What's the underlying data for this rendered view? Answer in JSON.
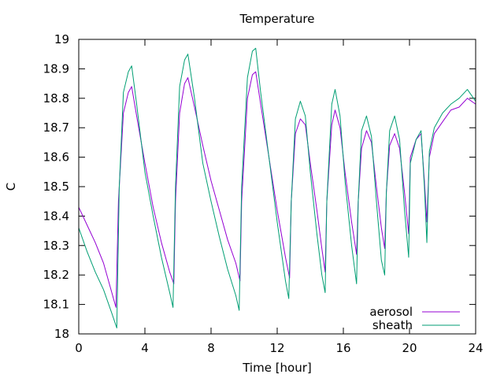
{
  "chart_data": {
    "type": "line",
    "title": "Temperature",
    "xlabel": "Time [hour]",
    "ylabel": "C",
    "xlim": [
      0,
      24
    ],
    "ylim": [
      18,
      19
    ],
    "x_ticks": [
      0,
      4,
      8,
      12,
      16,
      20,
      24
    ],
    "y_ticks": [
      18,
      18.1,
      18.2,
      18.3,
      18.4,
      18.5,
      18.6,
      18.7,
      18.8,
      18.9,
      19
    ],
    "y_tick_labels": [
      "18",
      "18.1",
      "18.2",
      "18.3",
      "18.4",
      "18.5",
      "18.6",
      "18.7",
      "18.8",
      "18.9",
      "19"
    ],
    "grid": false,
    "legend_position": "bottom-right",
    "series": [
      {
        "name": "aerosol",
        "color": "#9400d3",
        "points": [
          [
            0,
            18.43
          ],
          [
            0.5,
            18.37
          ],
          [
            1.0,
            18.31
          ],
          [
            1.5,
            18.24
          ],
          [
            2.0,
            18.14
          ],
          [
            2.25,
            18.09
          ],
          [
            2.4,
            18.45
          ],
          [
            2.7,
            18.75
          ],
          [
            3.0,
            18.82
          ],
          [
            3.2,
            18.84
          ],
          [
            3.5,
            18.74
          ],
          [
            4.0,
            18.58
          ],
          [
            4.5,
            18.43
          ],
          [
            5.0,
            18.31
          ],
          [
            5.5,
            18.21
          ],
          [
            5.75,
            18.17
          ],
          [
            5.85,
            18.45
          ],
          [
            6.1,
            18.75
          ],
          [
            6.4,
            18.85
          ],
          [
            6.6,
            18.87
          ],
          [
            7.0,
            18.77
          ],
          [
            7.5,
            18.64
          ],
          [
            8.0,
            18.52
          ],
          [
            8.5,
            18.42
          ],
          [
            9.0,
            18.32
          ],
          [
            9.5,
            18.24
          ],
          [
            9.75,
            18.18
          ],
          [
            9.85,
            18.45
          ],
          [
            10.2,
            18.8
          ],
          [
            10.5,
            18.88
          ],
          [
            10.7,
            18.89
          ],
          [
            11.0,
            18.78
          ],
          [
            11.5,
            18.6
          ],
          [
            12.0,
            18.42
          ],
          [
            12.5,
            18.26
          ],
          [
            12.75,
            18.19
          ],
          [
            12.85,
            18.45
          ],
          [
            13.1,
            18.68
          ],
          [
            13.4,
            18.73
          ],
          [
            13.7,
            18.71
          ],
          [
            14.0,
            18.58
          ],
          [
            14.4,
            18.42
          ],
          [
            14.7,
            18.29
          ],
          [
            14.9,
            18.21
          ],
          [
            15.0,
            18.45
          ],
          [
            15.3,
            18.71
          ],
          [
            15.5,
            18.76
          ],
          [
            15.8,
            18.7
          ],
          [
            16.1,
            18.55
          ],
          [
            16.5,
            18.38
          ],
          [
            16.8,
            18.27
          ],
          [
            16.9,
            18.45
          ],
          [
            17.1,
            18.63
          ],
          [
            17.4,
            18.69
          ],
          [
            17.7,
            18.65
          ],
          [
            18.0,
            18.5
          ],
          [
            18.3,
            18.36
          ],
          [
            18.5,
            18.29
          ],
          [
            18.6,
            18.48
          ],
          [
            18.8,
            18.64
          ],
          [
            19.1,
            18.68
          ],
          [
            19.4,
            18.63
          ],
          [
            19.7,
            18.48
          ],
          [
            19.95,
            18.34
          ],
          [
            20.05,
            18.6
          ],
          [
            20.4,
            18.66
          ],
          [
            20.7,
            18.68
          ],
          [
            20.9,
            18.52
          ],
          [
            21.05,
            18.38
          ],
          [
            21.2,
            18.6
          ],
          [
            21.5,
            18.68
          ],
          [
            22.0,
            18.72
          ],
          [
            22.5,
            18.76
          ],
          [
            23.0,
            18.77
          ],
          [
            23.5,
            18.8
          ],
          [
            24.0,
            18.78
          ]
        ]
      },
      {
        "name": "sheath",
        "color": "#009e73",
        "points": [
          [
            0,
            18.36
          ],
          [
            0.5,
            18.28
          ],
          [
            1.0,
            18.21
          ],
          [
            1.5,
            18.15
          ],
          [
            2.0,
            18.07
          ],
          [
            2.3,
            18.02
          ],
          [
            2.45,
            18.5
          ],
          [
            2.7,
            18.82
          ],
          [
            3.0,
            18.89
          ],
          [
            3.2,
            18.91
          ],
          [
            3.5,
            18.78
          ],
          [
            4.0,
            18.55
          ],
          [
            4.5,
            18.4
          ],
          [
            5.0,
            18.26
          ],
          [
            5.5,
            18.14
          ],
          [
            5.7,
            18.09
          ],
          [
            5.85,
            18.5
          ],
          [
            6.1,
            18.84
          ],
          [
            6.4,
            18.93
          ],
          [
            6.6,
            18.95
          ],
          [
            7.0,
            18.8
          ],
          [
            7.5,
            18.58
          ],
          [
            8.0,
            18.45
          ],
          [
            8.5,
            18.33
          ],
          [
            9.0,
            18.22
          ],
          [
            9.5,
            18.13
          ],
          [
            9.7,
            18.08
          ],
          [
            9.85,
            18.5
          ],
          [
            10.2,
            18.87
          ],
          [
            10.5,
            18.96
          ],
          [
            10.7,
            18.97
          ],
          [
            11.0,
            18.82
          ],
          [
            11.5,
            18.6
          ],
          [
            12.0,
            18.38
          ],
          [
            12.5,
            18.18
          ],
          [
            12.7,
            18.12
          ],
          [
            12.85,
            18.45
          ],
          [
            13.1,
            18.73
          ],
          [
            13.4,
            18.79
          ],
          [
            13.7,
            18.74
          ],
          [
            14.0,
            18.55
          ],
          [
            14.4,
            18.34
          ],
          [
            14.7,
            18.2
          ],
          [
            14.9,
            18.14
          ],
          [
            15.0,
            18.45
          ],
          [
            15.3,
            18.78
          ],
          [
            15.5,
            18.83
          ],
          [
            15.8,
            18.74
          ],
          [
            16.1,
            18.52
          ],
          [
            16.5,
            18.3
          ],
          [
            16.8,
            18.17
          ],
          [
            16.9,
            18.45
          ],
          [
            17.1,
            18.69
          ],
          [
            17.4,
            18.74
          ],
          [
            17.7,
            18.67
          ],
          [
            18.0,
            18.45
          ],
          [
            18.3,
            18.25
          ],
          [
            18.5,
            18.2
          ],
          [
            18.6,
            18.48
          ],
          [
            18.8,
            18.69
          ],
          [
            19.1,
            18.74
          ],
          [
            19.4,
            18.66
          ],
          [
            19.7,
            18.42
          ],
          [
            19.95,
            18.26
          ],
          [
            20.05,
            18.58
          ],
          [
            20.4,
            18.66
          ],
          [
            20.7,
            18.69
          ],
          [
            20.9,
            18.5
          ],
          [
            21.05,
            18.31
          ],
          [
            21.2,
            18.62
          ],
          [
            21.5,
            18.7
          ],
          [
            22.0,
            18.75
          ],
          [
            22.5,
            18.78
          ],
          [
            23.0,
            18.8
          ],
          [
            23.5,
            18.83
          ],
          [
            24.0,
            18.79
          ]
        ]
      }
    ]
  }
}
